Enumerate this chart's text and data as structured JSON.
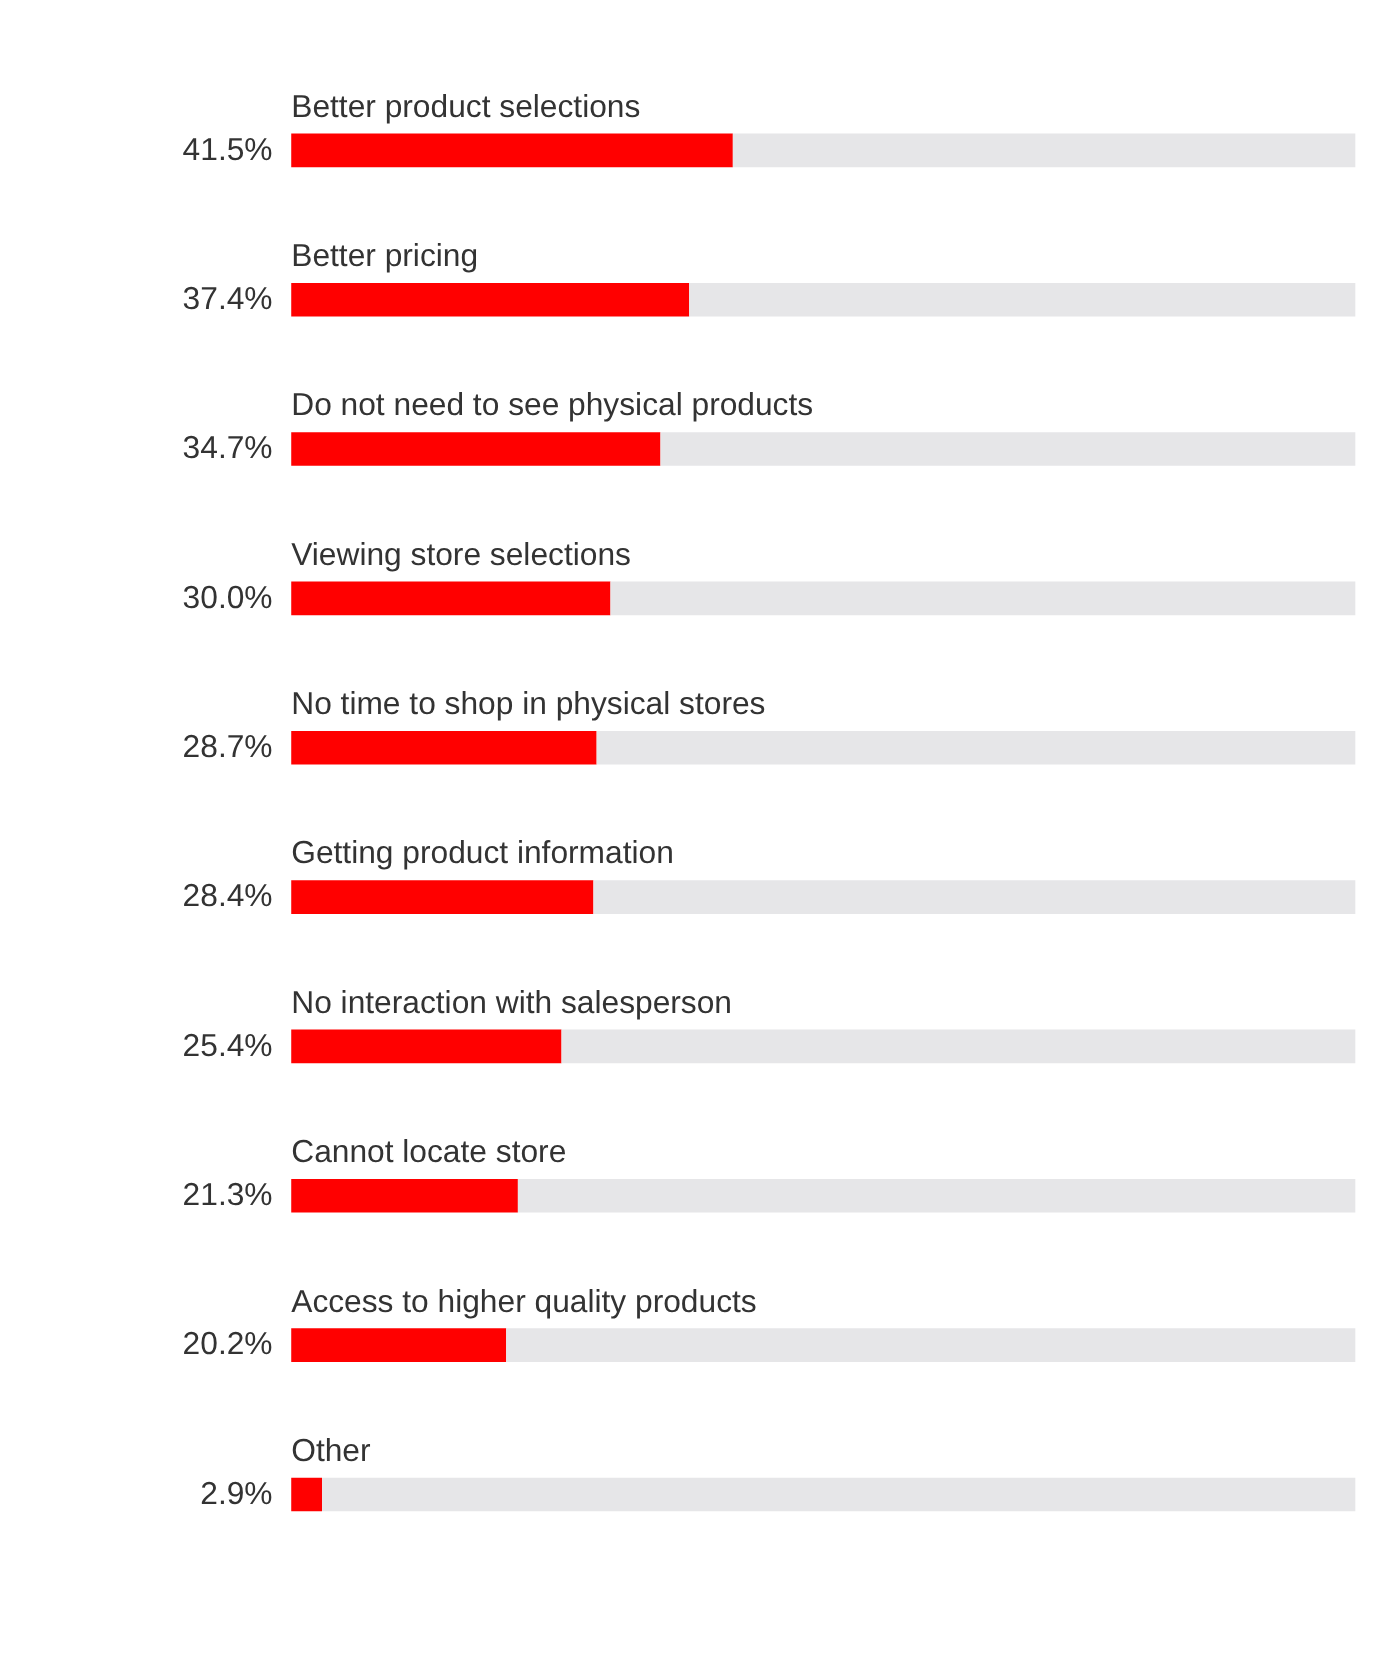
{
  "chart_data": {
    "type": "bar",
    "orientation": "horizontal",
    "stacked": true,
    "xlim": [
      0,
      100
    ],
    "tick_labels": false,
    "legend": false,
    "categories": [
      "Better product selections",
      "Better pricing",
      "Do not need to see physical products",
      "Viewing store selections",
      "No time to shop in physical stores",
      "Getting product information",
      "No interaction with salesperson",
      "Cannot locate store",
      "Access to higher quality products",
      "Other"
    ],
    "series": [
      {
        "color": "#ff0000",
        "values": [
          41.5,
          37.4,
          34.7,
          30.0,
          28.7,
          28.4,
          25.4,
          21.3,
          20.2,
          2.9
        ],
        "value_labels": [
          "41.5%",
          "37.4%",
          "34.7%",
          "30.0%",
          "28.7%",
          "28.4%",
          "25.4%",
          "21.3%",
          "20.2%",
          "2.9%"
        ]
      },
      {
        "color": "#e6e6e8",
        "values": [
          58.5,
          62.6,
          65.3,
          70.0,
          71.3,
          71.6,
          74.6,
          78.7,
          79.8,
          97.1
        ]
      }
    ]
  }
}
